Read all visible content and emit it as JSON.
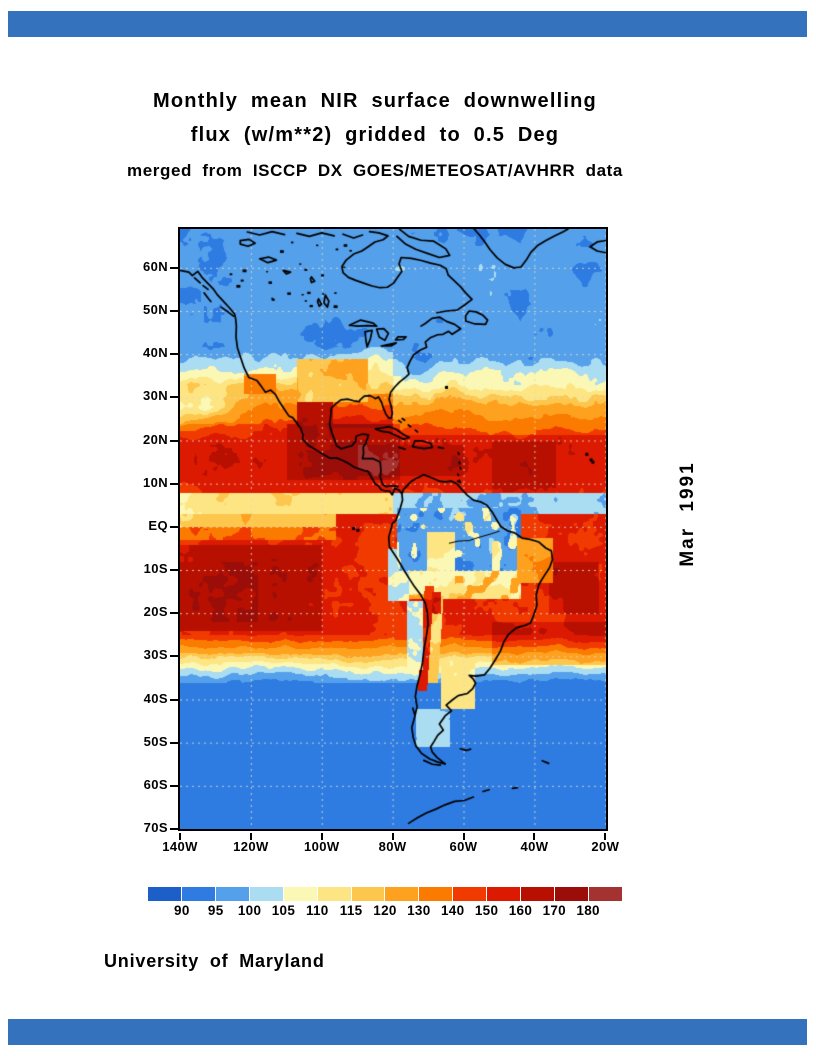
{
  "header": {
    "line1": "Monthly mean NIR surface downwelling",
    "line2": "flux (w/m**2) gridded to 0.5 Deg",
    "line3": "merged from ISCCP DX GOES/METEOSAT/AVHRR data"
  },
  "map": {
    "side_label": "Mar 1991",
    "lat_labels": [
      "60N",
      "50N",
      "40N",
      "30N",
      "20N",
      "10N",
      "EQ",
      "10S",
      "20S",
      "30S",
      "40S",
      "50S",
      "60S",
      "70S"
    ],
    "lon_labels": [
      "140W",
      "120W",
      "100W",
      "80W",
      "60W",
      "40W",
      "20W"
    ]
  },
  "colorbar": {
    "values": [
      "90",
      "95",
      "100",
      "105",
      "110",
      "115",
      "120",
      "130",
      "140",
      "150",
      "160",
      "170",
      "180"
    ],
    "colors": [
      "#1d5fc9",
      "#2e7ce2",
      "#55a0ea",
      "#aadcf2",
      "#fbf7b4",
      "#fde584",
      "#fdc74e",
      "#fea11f",
      "#fb7a00",
      "#f13a00",
      "#dc1a02",
      "#b81000",
      "#9b0d09",
      "#a43231"
    ]
  },
  "footer": {
    "credit": "University of Maryland"
  },
  "decor": {
    "bar_color": "#3572bd"
  },
  "chart_data": {
    "type": "heatmap",
    "title": "Monthly mean NIR surface downwelling flux (w/m**2) gridded to 0.5 Deg",
    "subtitle": "merged from ISCCP DX GOES/METEOSAT/AVHRR data",
    "variable": "NIR surface downwelling flux",
    "units": "w/m**2",
    "period": "Mar 1991",
    "resolution_deg": 0.5,
    "source": "ISCCP DX GOES/METEOSAT/AVHRR",
    "credit": "University of Maryland",
    "lon_range": [
      "140W",
      "20W"
    ],
    "lat_range": [
      "70S",
      "69N"
    ],
    "x_ticks": [
      "140W",
      "120W",
      "100W",
      "80W",
      "60W",
      "40W",
      "20W"
    ],
    "y_ticks": [
      "60N",
      "50N",
      "40N",
      "30N",
      "20N",
      "10N",
      "EQ",
      "10S",
      "20S",
      "30S",
      "40S",
      "50S",
      "60S",
      "70S"
    ],
    "levels": [
      90,
      95,
      100,
      105,
      110,
      115,
      120,
      130,
      140,
      150,
      160,
      170,
      180
    ],
    "palette": [
      "#1d5fc9",
      "#2e7ce2",
      "#55a0ea",
      "#aadcf2",
      "#fbf7b4",
      "#fde584",
      "#fdc74e",
      "#fea11f",
      "#fb7a00",
      "#f13a00",
      "#dc1a02",
      "#b81000",
      "#9b0d09",
      "#a43231"
    ],
    "legend_position": "bottom",
    "gridlines": "dashed, every 10 deg latitude and 20 deg longitude",
    "features": [
      "Uniform low flux (90-100 w/m**2, blue) poleward of ~38N and ~38S",
      "High-flux subtropical bands (140-180, orange/red) ~8N-25N and ~0S-28S",
      "Darkest red maxima over Mexico/Caribbean and the southeast Pacific",
      "Pale yellow ITCZ band (105-115) 3N-8N over the east Pacific",
      "Cloudy blue ITCZ (95-105) along the equatorial Atlantic",
      "Amazon basin cloudy blue (95-110) with pale mottling to the south",
      "Bright orange-red ribbon along the Andes with cream east flank",
      "Light blue coastal stratus (100-110) off Peru and Chile",
      "Pale wedge (110-125) in the northwest subtropical Pacific 20N-32N"
    ]
  }
}
